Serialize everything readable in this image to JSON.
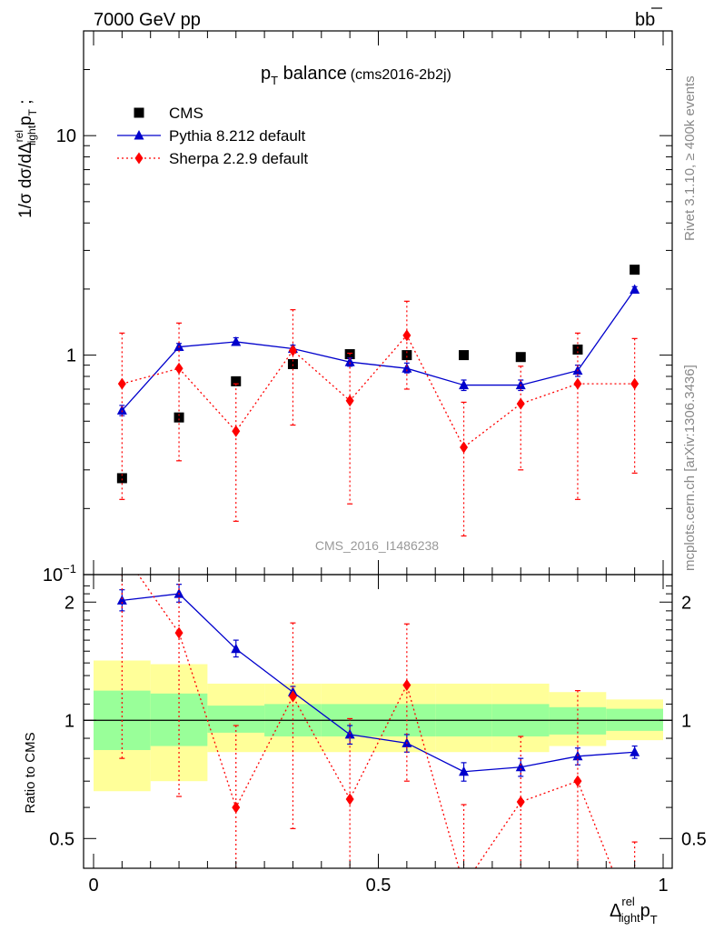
{
  "header": {
    "left": "7000 GeV pp",
    "right": "b",
    "right_bar": "b"
  },
  "side_labels": {
    "rivet": "Rivet 3.1.10, ≥ 400k events",
    "mcplots": "mcplots.cern.ch [arXiv:1306.3436]"
  },
  "watermark": "CMS_2016_I1486238",
  "chart_data": [
    {
      "type": "line",
      "title_main": "p",
      "title_main_sub": "T",
      "title_main_rest": " balance",
      "title_tag": "(cms2016-2b2j)",
      "ylabel": "1/σ dσ/dΔ",
      "ylabel_sup": "rel",
      "ylabel_sub": "light",
      "ylabel_tail": "p",
      "ylabel_tail_sub": "T",
      "ylabel_end": " ;",
      "yscale": "log",
      "ylim": [
        0.1,
        30
      ],
      "yticks": [
        {
          "v": 0.1,
          "base": "10",
          "exp": "−1"
        },
        {
          "v": 1,
          "base": "1",
          "exp": ""
        },
        {
          "v": 10,
          "base": "10",
          "exp": ""
        }
      ],
      "xlim": [
        0,
        1
      ],
      "legend_position": "top-left",
      "x": [
        0.05,
        0.15,
        0.25,
        0.35,
        0.45,
        0.55,
        0.65,
        0.75,
        0.85,
        0.95
      ],
      "series": [
        {
          "name": "CMS",
          "color": "#000000",
          "marker": "square",
          "line": "none",
          "values": [
            0.275,
            0.52,
            0.76,
            0.91,
            1.01,
            1.0,
            1.0,
            0.98,
            1.06,
            2.45
          ],
          "err_low": [
            0.265,
            0.51,
            0.74,
            0.89,
            0.99,
            0.98,
            0.98,
            0.96,
            1.03,
            2.4
          ],
          "err_high": [
            0.285,
            0.53,
            0.78,
            0.93,
            1.03,
            1.02,
            1.02,
            1.0,
            1.09,
            2.5
          ]
        },
        {
          "name": "Pythia 8.212 default",
          "color": "#0000cc",
          "marker": "triangle",
          "line": "solid",
          "values": [
            0.56,
            1.09,
            1.15,
            1.07,
            0.93,
            0.87,
            0.73,
            0.73,
            0.85,
            1.99
          ],
          "err_low": [
            0.53,
            1.05,
            1.11,
            1.04,
            0.89,
            0.83,
            0.69,
            0.69,
            0.8,
            1.93
          ],
          "err_high": [
            0.59,
            1.13,
            1.2,
            1.11,
            0.97,
            0.92,
            0.77,
            0.77,
            0.9,
            2.05
          ]
        },
        {
          "name": "Sherpa 2.2.9 default",
          "color": "#ff0000",
          "marker": "diamond",
          "line": "dotted",
          "values": [
            0.74,
            0.87,
            0.45,
            1.05,
            0.62,
            1.23,
            0.38,
            0.6,
            0.74,
            0.74
          ],
          "err_low": [
            0.22,
            0.33,
            0.175,
            0.48,
            0.21,
            0.7,
            0.15,
            0.3,
            0.22,
            0.29
          ],
          "err_high": [
            1.26,
            1.4,
            0.74,
            1.61,
            1.02,
            1.76,
            0.61,
            0.89,
            1.26,
            1.19
          ]
        }
      ]
    },
    {
      "type": "line",
      "ylabel": "Ratio to CMS",
      "yscale": "log",
      "ylim": [
        0.42,
        2.35
      ],
      "yticks": [
        0.5,
        1,
        2
      ],
      "xlabel": "Δ",
      "xlabel_sup": "rel",
      "xlabel_sub": "light",
      "xlabel_tail": "p",
      "xlabel_tail_sub": "T",
      "xlim": [
        0,
        1
      ],
      "xticks": [
        0,
        0.5,
        1
      ],
      "bands": {
        "edges": [
          0,
          0.1,
          0.2,
          0.3,
          0.4,
          0.5,
          0.6,
          0.7,
          0.8,
          0.9,
          1.0
        ],
        "inner_low": [
          0.84,
          0.86,
          0.93,
          0.91,
          0.91,
          0.91,
          0.91,
          0.91,
          0.92,
          0.94
        ],
        "inner_high": [
          1.19,
          1.17,
          1.09,
          1.1,
          1.1,
          1.1,
          1.1,
          1.1,
          1.08,
          1.07
        ],
        "outer_low": [
          0.66,
          0.7,
          0.83,
          0.83,
          0.83,
          0.83,
          0.83,
          0.83,
          0.86,
          0.89
        ],
        "outer_high": [
          1.42,
          1.39,
          1.24,
          1.24,
          1.24,
          1.24,
          1.24,
          1.24,
          1.18,
          1.13
        ],
        "inner_color": "#99ff99",
        "outer_color": "#ffff99"
      },
      "series": [
        {
          "name": "Pythia 8.212 default",
          "color": "#0000cc",
          "marker": "triangle",
          "line": "solid",
          "values": [
            2.02,
            2.1,
            1.52,
            1.18,
            0.92,
            0.875,
            0.74,
            0.76,
            0.81,
            0.83
          ],
          "err_low": [
            1.9,
            2.0,
            1.45,
            1.14,
            0.87,
            0.83,
            0.7,
            0.72,
            0.77,
            0.8
          ],
          "err_high": [
            2.15,
            2.22,
            1.6,
            1.22,
            0.97,
            0.92,
            0.78,
            0.8,
            0.85,
            0.86
          ]
        },
        {
          "name": "Sherpa 2.2.9 default",
          "color": "#ff0000",
          "marker": "diamond",
          "line": "dotted",
          "values": [
            2.69,
            1.67,
            0.6,
            1.15,
            0.63,
            1.23,
            0.38,
            0.62,
            0.7,
            0.3
          ],
          "err_low": [
            0.8,
            0.64,
            0.23,
            0.53,
            0.21,
            0.7,
            0.15,
            0.31,
            0.21,
            0.12
          ],
          "err_high": [
            4.58,
            2.69,
            0.97,
            1.77,
            1.01,
            1.76,
            0.61,
            0.91,
            1.19,
            0.49
          ]
        }
      ]
    }
  ]
}
